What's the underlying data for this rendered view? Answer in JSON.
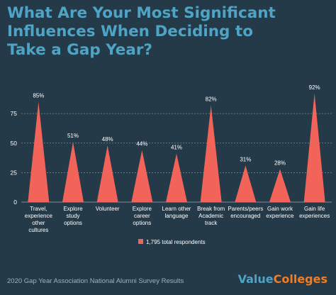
{
  "title_lines": [
    "What Are Your Most Significant",
    "Influences When Deciding to",
    "Take a Gap Year?"
  ],
  "footer": "2020 Gap Year Association National Alumni Survey Results",
  "brand": {
    "part1": "Value",
    "part2": "Colleges"
  },
  "colors": {
    "background": "#243a48",
    "title": "#4fa3c4",
    "bar": "#f2645a",
    "grid": "#7d8c96",
    "text": "#ffffff",
    "brand_value": "#4fa3c4",
    "brand_colleges": "#f47c20"
  },
  "chart_data": {
    "type": "bar",
    "mark_shape": "triangle",
    "title": "What Are Your Most Significant Influences When Deciding to Take a Gap Year?",
    "xlabel": "",
    "ylabel": "",
    "ylim": [
      0,
      100
    ],
    "yticks": [
      0,
      25,
      50,
      75
    ],
    "grid": true,
    "legend": {
      "placement": "bottom",
      "label": "1,795 total respondents"
    },
    "categories": [
      [
        "Travel,",
        "experience",
        "other",
        "cultures"
      ],
      [
        "Explore",
        "study",
        "options"
      ],
      [
        "Volunteer"
      ],
      [
        "Explore",
        "career",
        "options"
      ],
      [
        "Learn other",
        "language"
      ],
      [
        "Break from",
        "Academic",
        "track"
      ],
      [
        "Parents/peers",
        "encouraged"
      ],
      [
        "Gain work",
        "experience"
      ],
      [
        "Gain life",
        "experiences"
      ]
    ],
    "values": [
      85,
      51,
      48,
      44,
      41,
      82,
      31,
      28,
      92
    ],
    "data_labels": [
      "85%",
      "51%",
      "48%",
      "44%",
      "41%",
      "82%",
      "31%",
      "28%",
      "92%"
    ]
  }
}
